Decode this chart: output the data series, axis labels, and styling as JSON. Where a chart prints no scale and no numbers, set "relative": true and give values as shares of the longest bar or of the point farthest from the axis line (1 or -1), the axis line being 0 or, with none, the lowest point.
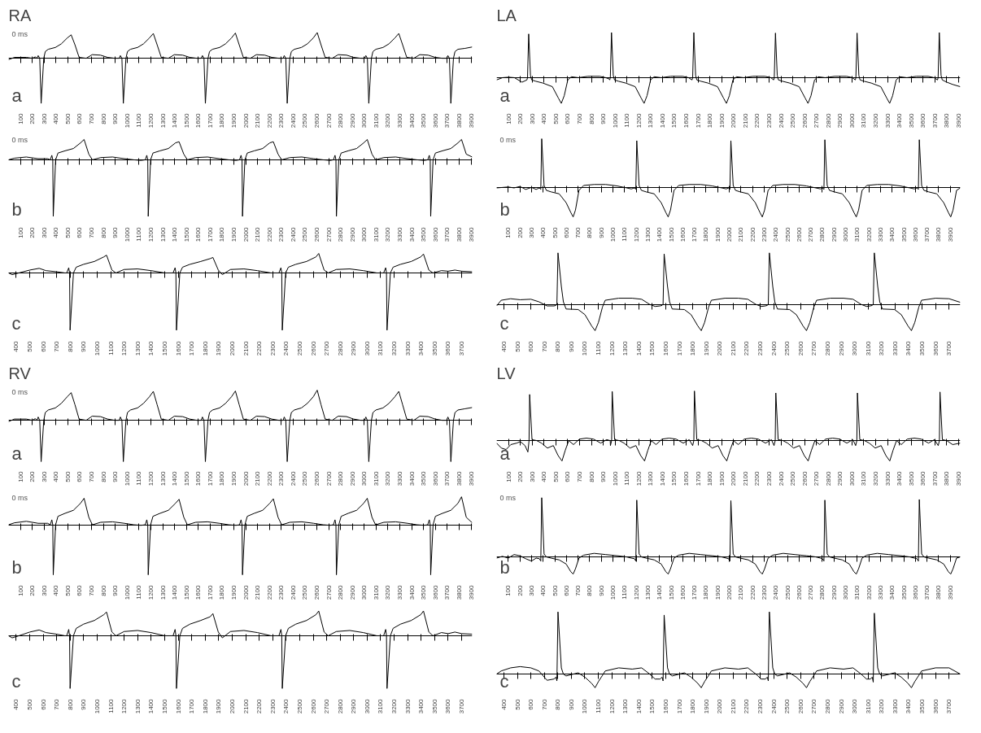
{
  "chart_data": [
    {
      "type": "line",
      "title": "RA",
      "annotations": [
        "0 ms",
        "a"
      ],
      "relative": true,
      "color": "#000000",
      "xlim": [
        0,
        3910
      ],
      "xticks": [
        100,
        200,
        300,
        400,
        500,
        600,
        700,
        800,
        900,
        1000,
        1100,
        1200,
        1300,
        1400,
        1500,
        1600,
        1700,
        1800,
        1900,
        2000,
        2100,
        2200,
        2300,
        2400,
        2500,
        2600,
        2700,
        2800,
        2900,
        3000,
        3100,
        3200,
        3300,
        3400,
        3500,
        3600,
        3700,
        3800,
        3900
      ],
      "x": [
        0,
        50,
        150,
        200,
        225,
        240,
        250,
        263,
        275,
        297,
        310,
        335,
        395,
        445,
        495,
        528,
        560,
        595,
        655,
        705,
        775,
        835,
        895,
        933,
        943,
        956,
        968,
        990,
        1003,
        1028,
        1088,
        1138,
        1188,
        1221,
        1253,
        1288,
        1348,
        1398,
        1468,
        1528,
        1588,
        1625,
        1635,
        1648,
        1660,
        1682,
        1695,
        1720,
        1780,
        1830,
        1880,
        1913,
        1945,
        1980,
        2040,
        2090,
        2160,
        2220,
        2280,
        2315,
        2325,
        2338,
        2350,
        2372,
        2385,
        2410,
        2470,
        2520,
        2570,
        2603,
        2635,
        2670,
        2730,
        2780,
        2850,
        2910,
        2970,
        3003,
        3013,
        3026,
        3038,
        3060,
        3073,
        3098,
        3158,
        3208,
        3258,
        3291,
        3323,
        3358,
        3418,
        3468,
        3538,
        3598,
        3658,
        3695,
        3705,
        3718,
        3730,
        3752,
        3765,
        3790,
        3850,
        3910
      ],
      "values": [
        -0.03,
        0.02,
        0.02,
        0,
        0.03,
        0,
        0.06,
        0,
        -1,
        0,
        0.15,
        0.2,
        0.24,
        0.32,
        0.45,
        0.52,
        0.3,
        0.02,
        0,
        0.08,
        0.07,
        0.02,
        0,
        0,
        0.06,
        0,
        -1,
        0,
        0.15,
        0.2,
        0.24,
        0.32,
        0.45,
        0.55,
        0.3,
        0.02,
        0,
        0.08,
        0.07,
        0.02,
        0,
        0,
        0.06,
        0,
        -1,
        0,
        0.15,
        0.2,
        0.24,
        0.32,
        0.45,
        0.56,
        0.3,
        0.02,
        0,
        0.08,
        0.07,
        0.02,
        0,
        0,
        0.06,
        0,
        -1,
        0,
        0.15,
        0.2,
        0.24,
        0.32,
        0.45,
        0.57,
        0.3,
        0.02,
        0,
        0.08,
        0.07,
        0.02,
        0,
        0,
        0.06,
        0,
        -1,
        0,
        0.15,
        0.2,
        0.24,
        0.32,
        0.45,
        0.55,
        0.3,
        0.02,
        0,
        0.08,
        0.07,
        0.02,
        0,
        0,
        0.06,
        0,
        -1,
        0,
        0.15,
        0.2,
        0.22,
        0.25
      ]
    },
    {
      "type": "line",
      "annotations": [
        "0 ms",
        "b"
      ],
      "relative": true,
      "color": "#000000",
      "xlim": [
        0,
        3910
      ],
      "xticks": [
        100,
        200,
        300,
        400,
        500,
        600,
        700,
        800,
        900,
        1000,
        1100,
        1200,
        1300,
        1400,
        1500,
        1600,
        1700,
        1800,
        1900,
        2000,
        2100,
        2200,
        2300,
        2400,
        2500,
        2600,
        2700,
        2800,
        2900,
        3000,
        3100,
        3200,
        3300,
        3400,
        3500,
        3600,
        3700,
        3800,
        3900
      ],
      "x": [
        0,
        50,
        150,
        250,
        330,
        352,
        365,
        373,
        377,
        397,
        417,
        477,
        547,
        607,
        637,
        677,
        707,
        777,
        877,
        977,
        1057,
        1117,
        1153,
        1166,
        1174,
        1178,
        1198,
        1218,
        1278,
        1348,
        1408,
        1438,
        1478,
        1508,
        1578,
        1678,
        1778,
        1858,
        1918,
        1948,
        1961,
        1969,
        1973,
        1993,
        2013,
        2073,
        2143,
        2203,
        2233,
        2273,
        2303,
        2373,
        2473,
        2573,
        2653,
        2713,
        2740,
        2753,
        2761,
        2765,
        2785,
        2805,
        2865,
        2935,
        2995,
        3025,
        3065,
        3095,
        3165,
        3265,
        3365,
        3445,
        3505,
        3535,
        3548,
        3556,
        3560,
        3580,
        3600,
        3660,
        3730,
        3790,
        3820,
        3860,
        3910
      ],
      "values": [
        0,
        0.03,
        0.05,
        0.02,
        0.02,
        0,
        0.08,
        0,
        -1,
        0,
        0.12,
        0.16,
        0.2,
        0.3,
        0.36,
        0.1,
        0,
        0.04,
        0.05,
        0.02,
        0,
        -0.01,
        0,
        0.08,
        0,
        -1,
        0,
        0.12,
        0.16,
        0.2,
        0.3,
        0.32,
        0.1,
        0,
        0.04,
        0.05,
        0.02,
        0,
        -0.01,
        0,
        0.08,
        0,
        -1,
        0,
        0.12,
        0.16,
        0.2,
        0.3,
        0.32,
        0.1,
        0,
        0.04,
        0.05,
        0.02,
        0,
        -0.01,
        0,
        0.08,
        0,
        -1,
        0,
        0.12,
        0.16,
        0.2,
        0.3,
        0.36,
        0.1,
        0,
        0.04,
        0.05,
        0.02,
        0,
        -0.01,
        0,
        0.08,
        0,
        -1,
        0,
        0.12,
        0.16,
        0.2,
        0.3,
        0.36,
        0.1,
        0.05
      ]
    },
    {
      "type": "line",
      "annotations": [
        "c"
      ],
      "relative": true,
      "color": "#000000",
      "xlim": [
        343,
        3778
      ],
      "xticks": [
        400,
        500,
        600,
        700,
        800,
        900,
        1000,
        1100,
        1200,
        1300,
        1400,
        1500,
        1600,
        1700,
        1800,
        1900,
        2000,
        2100,
        2200,
        2300,
        2400,
        2500,
        2600,
        2700,
        2800,
        2900,
        3000,
        3100,
        3200,
        3300,
        3400,
        3500,
        3600,
        3700
      ],
      "x": [
        343,
        370,
        420,
        500,
        570,
        620,
        700,
        760,
        774,
        789,
        795,
        799,
        824,
        844,
        899,
        979,
        1049,
        1069,
        1109,
        1139,
        1199,
        1299,
        1399,
        1499,
        1562,
        1577,
        1583,
        1587,
        1612,
        1632,
        1687,
        1767,
        1837,
        1857,
        1897,
        1927,
        1987,
        2087,
        2187,
        2287,
        2346,
        2361,
        2367,
        2371,
        2396,
        2416,
        2471,
        2551,
        2621,
        2641,
        2681,
        2711,
        2771,
        2871,
        2971,
        3071,
        3122,
        3137,
        3143,
        3147,
        3172,
        3192,
        3247,
        3327,
        3397,
        3417,
        3457,
        3487,
        3550,
        3600,
        3650,
        3700,
        3778
      ],
      "values": [
        0,
        -0.03,
        0,
        0.05,
        0.08,
        0.04,
        0.02,
        0,
        0,
        0.09,
        0,
        -1,
        0,
        0.1,
        0.15,
        0.2,
        0.28,
        0.31,
        0.05,
        0,
        0.06,
        0.07,
        0.04,
        0,
        0,
        0.09,
        0,
        -1,
        0,
        0.1,
        0.15,
        0.2,
        0.25,
        0.27,
        0.05,
        -0.03,
        0.06,
        0.07,
        0.04,
        0,
        0,
        0.09,
        0,
        -1,
        0,
        0.1,
        0.15,
        0.2,
        0.28,
        0.34,
        0.05,
        0,
        0.06,
        0.07,
        0.04,
        0,
        0,
        0.09,
        0,
        -1,
        0,
        0.1,
        0.15,
        0.2,
        0.28,
        0.33,
        0.05,
        0,
        0.04,
        0.03,
        0.05,
        0.03,
        0.02
      ]
    },
    {
      "type": "line",
      "title": "LA",
      "annotations": [
        "a"
      ],
      "relative": true,
      "color": "#000000",
      "xlim": [
        0,
        3914
      ],
      "xticks": [
        100,
        200,
        300,
        400,
        500,
        600,
        700,
        800,
        900,
        1000,
        1100,
        1200,
        1300,
        1400,
        1500,
        1600,
        1700,
        1800,
        1900,
        2000,
        2100,
        2200,
        2300,
        2400,
        2500,
        2600,
        2700,
        2800,
        2900,
        3000,
        3100,
        3200,
        3300,
        3400,
        3500,
        3600,
        3700,
        3800,
        3900
      ],
      "x": [
        0,
        50,
        100,
        150,
        215,
        256,
        261,
        271,
        286,
        296,
        331,
        391,
        471,
        521,
        546,
        571,
        601,
        631,
        691,
        771,
        871,
        921,
        951,
        955,
        960,
        970,
        985,
        995,
        1030,
        1090,
        1170,
        1220,
        1245,
        1270,
        1300,
        1330,
        1390,
        1470,
        1570,
        1620,
        1650,
        1655,
        1665,
        1680,
        1690,
        1725,
        1785,
        1865,
        1915,
        1940,
        1965,
        1995,
        2025,
        2085,
        2165,
        2265,
        2315,
        2339,
        2344,
        2354,
        2369,
        2379,
        2414,
        2474,
        2554,
        2604,
        2629,
        2654,
        2684,
        2714,
        2774,
        2854,
        2954,
        3004,
        3028,
        3033,
        3043,
        3058,
        3068,
        3103,
        3163,
        3243,
        3293,
        3318,
        3343,
        3373,
        3403,
        3463,
        3543,
        3643,
        3693,
        3722,
        3727,
        3737,
        3752,
        3762,
        3800,
        3850,
        3914
      ],
      "values": [
        -0.05,
        0,
        0.01,
        0,
        -0.1,
        -0.05,
        0,
        0.97,
        0.05,
        -0.05,
        -0.08,
        -0.12,
        -0.2,
        -0.45,
        -0.57,
        -0.4,
        -0.05,
        0.02,
        0,
        0.03,
        0.03,
        0,
        -0.03,
        -0.05,
        0,
        1,
        0.05,
        -0.05,
        -0.08,
        -0.12,
        -0.2,
        -0.45,
        -0.57,
        -0.4,
        -0.05,
        0.02,
        0,
        0.03,
        0.03,
        0,
        -0.05,
        0,
        1,
        0.05,
        -0.05,
        -0.08,
        -0.12,
        -0.2,
        -0.45,
        -0.57,
        -0.4,
        -0.05,
        0.02,
        0,
        0.03,
        0.03,
        0,
        -0.05,
        0,
        0.99,
        0.05,
        -0.05,
        -0.08,
        -0.12,
        -0.2,
        -0.45,
        -0.57,
        -0.4,
        -0.05,
        0.02,
        0,
        0.03,
        0.03,
        0,
        -0.05,
        0,
        0.99,
        0.05,
        -0.05,
        -0.08,
        -0.12,
        -0.2,
        -0.45,
        -0.57,
        -0.4,
        -0.05,
        0.02,
        0,
        0.03,
        0.03,
        0,
        -0.05,
        0,
        1,
        0.05,
        -0.05,
        -0.1,
        -0.15,
        -0.2
      ]
    },
    {
      "type": "line",
      "annotations": [
        "0 ms",
        "b"
      ],
      "relative": true,
      "color": "#000000",
      "xlim": [
        0,
        3986
      ],
      "xticks": [
        100,
        200,
        300,
        400,
        500,
        600,
        700,
        800,
        900,
        1000,
        1100,
        1200,
        1300,
        1400,
        1500,
        1600,
        1700,
        1800,
        1900,
        2000,
        2100,
        2200,
        2300,
        2400,
        2500,
        2600,
        2700,
        2800,
        2900,
        3000,
        3100,
        3200,
        3300,
        3400,
        3500,
        3600,
        3700,
        3800,
        3900
      ],
      "x": [
        0,
        50,
        100,
        150,
        200,
        250,
        300,
        340,
        368,
        380,
        388,
        408,
        428,
        468,
        538,
        598,
        638,
        658,
        678,
        708,
        748,
        838,
        938,
        1038,
        1118,
        1158,
        1185,
        1197,
        1205,
        1225,
        1245,
        1285,
        1355,
        1415,
        1455,
        1475,
        1495,
        1525,
        1565,
        1655,
        1755,
        1855,
        1935,
        1975,
        1994,
        2006,
        2014,
        2034,
        2054,
        2094,
        2164,
        2224,
        2264,
        2284,
        2304,
        2334,
        2374,
        2464,
        2564,
        2664,
        2744,
        2784,
        2802,
        2814,
        2822,
        2842,
        2862,
        2902,
        2972,
        3032,
        3072,
        3092,
        3112,
        3142,
        3182,
        3272,
        3372,
        3472,
        3552,
        3592,
        3614,
        3626,
        3634,
        3654,
        3674,
        3714,
        3784,
        3844,
        3884,
        3904,
        3924,
        3954,
        3986
      ],
      "values": [
        0,
        0.01,
        0.02,
        0,
        0.03,
        -0.03,
        0.01,
        -0.03,
        0,
        -0.03,
        1,
        0.05,
        -0.05,
        -0.08,
        -0.12,
        -0.3,
        -0.5,
        -0.59,
        -0.45,
        -0.05,
        0.05,
        0.07,
        0.07,
        0.04,
        0,
        -0.02,
        0,
        -0.03,
        0.96,
        0.05,
        -0.05,
        -0.08,
        -0.12,
        -0.3,
        -0.5,
        -0.59,
        -0.45,
        -0.05,
        0.05,
        0.07,
        0.07,
        0.04,
        0,
        -0.02,
        0,
        -0.03,
        0.96,
        0.05,
        -0.05,
        -0.08,
        -0.12,
        -0.3,
        -0.5,
        -0.59,
        -0.45,
        -0.05,
        0.05,
        0.07,
        0.07,
        0.04,
        0,
        -0.02,
        0,
        -0.03,
        0.98,
        0.05,
        -0.05,
        -0.08,
        -0.12,
        -0.3,
        -0.5,
        -0.59,
        -0.45,
        -0.05,
        0.05,
        0.07,
        0.07,
        0.04,
        0,
        -0.02,
        0,
        -0.03,
        0.98,
        0.05,
        -0.05,
        -0.08,
        -0.12,
        -0.3,
        -0.5,
        -0.59,
        -0.45,
        -0.05,
        0
      ]
    },
    {
      "type": "line",
      "annotations": [
        "c"
      ],
      "relative": true,
      "color": "#000000",
      "xlim": [
        346,
        3783
      ],
      "xticks": [
        400,
        500,
        600,
        700,
        800,
        900,
        1000,
        1100,
        1200,
        1300,
        1400,
        1500,
        1600,
        1700,
        1800,
        1900,
        2000,
        2100,
        2200,
        2300,
        2400,
        2500,
        2600,
        2700,
        2800,
        2900,
        3000,
        3100,
        3200,
        3300,
        3400,
        3500,
        3600,
        3700
      ],
      "x": [
        346,
        380,
        450,
        520,
        600,
        660,
        720,
        771,
        786,
        793,
        801,
        826,
        841,
        861,
        951,
        1001,
        1051,
        1076,
        1101,
        1131,
        1151,
        1251,
        1351,
        1421,
        1481,
        1521,
        1558,
        1573,
        1580,
        1588,
        1613,
        1628,
        1648,
        1738,
        1788,
        1838,
        1863,
        1888,
        1918,
        1938,
        2038,
        2138,
        2208,
        2268,
        2308,
        2338,
        2353,
        2360,
        2368,
        2393,
        2408,
        2428,
        2518,
        2568,
        2618,
        2643,
        2668,
        2698,
        2718,
        2818,
        2918,
        2988,
        3048,
        3088,
        3116,
        3131,
        3138,
        3146,
        3171,
        3186,
        3206,
        3296,
        3346,
        3396,
        3421,
        3446,
        3476,
        3496,
        3600,
        3700,
        3783
      ],
      "values": [
        -0.03,
        0.08,
        0.11,
        0.09,
        0.1,
        0.05,
        -0.03,
        -0.03,
        -0.02,
        0,
        1,
        0.35,
        0.05,
        -0.09,
        -0.1,
        -0.2,
        -0.42,
        -0.51,
        -0.35,
        -0.05,
        0.08,
        0.12,
        0.12,
        0.1,
        0,
        -0.04,
        -0.03,
        -0.02,
        0,
        0.98,
        0.35,
        0.05,
        -0.09,
        -0.1,
        -0.2,
        -0.42,
        -0.51,
        -0.35,
        -0.05,
        0.08,
        0.12,
        0.12,
        0.1,
        0,
        -0.04,
        -0.03,
        -0.02,
        0,
        1,
        0.35,
        0.05,
        -0.09,
        -0.1,
        -0.2,
        -0.42,
        -0.51,
        -0.35,
        -0.05,
        0.08,
        0.12,
        0.12,
        0.1,
        0,
        -0.04,
        -0.03,
        -0.02,
        0,
        1,
        0.35,
        0.05,
        -0.09,
        -0.1,
        -0.2,
        -0.42,
        -0.51,
        -0.35,
        -0.05,
        0.08,
        0.12,
        0.11,
        0.04
      ]
    },
    {
      "type": "line",
      "title": "RV",
      "annotations": [
        "0 ms",
        "a"
      ],
      "relative": true,
      "color": "#000000",
      "xlim": [
        0,
        3910
      ],
      "xticks": [
        100,
        200,
        300,
        400,
        500,
        600,
        700,
        800,
        900,
        1000,
        1100,
        1200,
        1300,
        1400,
        1500,
        1600,
        1700,
        1800,
        1900,
        2000,
        2100,
        2200,
        2300,
        2400,
        2500,
        2600,
        2700,
        2800,
        2900,
        3000,
        3100,
        3200,
        3300,
        3400,
        3500,
        3600,
        3700,
        3800,
        3900
      ],
      "x": [
        0,
        50,
        150,
        200,
        225,
        240,
        250,
        263,
        275,
        297,
        310,
        335,
        395,
        445,
        495,
        528,
        560,
        595,
        655,
        705,
        775,
        835,
        895,
        933,
        943,
        956,
        968,
        990,
        1003,
        1028,
        1088,
        1138,
        1188,
        1221,
        1253,
        1288,
        1348,
        1398,
        1468,
        1528,
        1588,
        1625,
        1635,
        1648,
        1660,
        1682,
        1695,
        1720,
        1780,
        1830,
        1880,
        1913,
        1945,
        1980,
        2040,
        2090,
        2160,
        2220,
        2280,
        2315,
        2325,
        2338,
        2350,
        2372,
        2385,
        2410,
        2470,
        2520,
        2570,
        2603,
        2635,
        2670,
        2730,
        2780,
        2850,
        2910,
        2970,
        3003,
        3013,
        3026,
        3038,
        3060,
        3073,
        3098,
        3158,
        3208,
        3258,
        3291,
        3323,
        3358,
        3418,
        3468,
        3538,
        3598,
        3658,
        3695,
        3705,
        3718,
        3730,
        3752,
        3765,
        3790,
        3850,
        3910
      ],
      "values": [
        -0.03,
        0.03,
        0.03,
        0,
        0.04,
        0,
        0.08,
        0,
        -1,
        0,
        0.19,
        0.25,
        0.3,
        0.41,
        0.57,
        0.67,
        0.38,
        0.03,
        0,
        0.1,
        0.09,
        0.03,
        0,
        0,
        0.08,
        0,
        -1,
        0,
        0.19,
        0.25,
        0.3,
        0.41,
        0.57,
        0.7,
        0.38,
        0.03,
        0,
        0.1,
        0.09,
        0.03,
        0,
        0,
        0.08,
        0,
        -1,
        0,
        0.19,
        0.25,
        0.3,
        0.41,
        0.57,
        0.71,
        0.38,
        0.03,
        0,
        0.1,
        0.09,
        0.03,
        0,
        0,
        0.08,
        0,
        -1,
        0,
        0.19,
        0.25,
        0.3,
        0.41,
        0.57,
        0.73,
        0.38,
        0.03,
        0,
        0.1,
        0.09,
        0.03,
        0,
        0,
        0.08,
        0,
        -1,
        0,
        0.19,
        0.25,
        0.3,
        0.41,
        0.57,
        0.7,
        0.38,
        0.03,
        0,
        0.1,
        0.09,
        0.03,
        0,
        0,
        0.08,
        0,
        -1,
        0,
        0.19,
        0.25,
        0.28,
        0.31
      ]
    },
    {
      "type": "line",
      "annotations": [
        "0 ms",
        "b"
      ],
      "relative": true,
      "color": "#000000",
      "xlim": [
        0,
        3910
      ],
      "xticks": [
        100,
        200,
        300,
        400,
        500,
        600,
        700,
        800,
        900,
        1000,
        1100,
        1200,
        1300,
        1400,
        1500,
        1600,
        1700,
        1800,
        1900,
        2000,
        2100,
        2200,
        2300,
        2400,
        2500,
        2600,
        2700,
        2800,
        2900,
        3000,
        3100,
        3200,
        3300,
        3400,
        3500,
        3600,
        3700,
        3800,
        3900
      ],
      "x": [
        0,
        50,
        150,
        250,
        330,
        352,
        365,
        373,
        377,
        397,
        417,
        477,
        547,
        607,
        637,
        677,
        707,
        777,
        877,
        977,
        1057,
        1117,
        1153,
        1166,
        1174,
        1178,
        1198,
        1218,
        1278,
        1348,
        1408,
        1438,
        1478,
        1508,
        1578,
        1678,
        1778,
        1858,
        1918,
        1948,
        1961,
        1969,
        1973,
        1993,
        2013,
        2073,
        2143,
        2203,
        2233,
        2273,
        2303,
        2373,
        2473,
        2573,
        2653,
        2713,
        2740,
        2753,
        2761,
        2765,
        2785,
        2805,
        2865,
        2935,
        2995,
        3025,
        3065,
        3095,
        3165,
        3265,
        3365,
        3445,
        3505,
        3535,
        3548,
        3556,
        3560,
        3580,
        3600,
        3660,
        3730,
        3790,
        3820,
        3860,
        3910
      ],
      "values": [
        0,
        0.04,
        0.07,
        0.03,
        0.03,
        0,
        0.1,
        0,
        -1,
        0,
        0.17,
        0.23,
        0.29,
        0.43,
        0.53,
        0.15,
        0,
        0.05,
        0.06,
        0.03,
        0,
        -0.01,
        0,
        0.1,
        0,
        -1,
        0,
        0.17,
        0.23,
        0.29,
        0.43,
        0.51,
        0.15,
        0,
        0.05,
        0.06,
        0.03,
        0,
        -0.01,
        0,
        0.1,
        0,
        -1,
        0,
        0.17,
        0.23,
        0.29,
        0.43,
        0.52,
        0.15,
        0,
        0.05,
        0.06,
        0.03,
        0,
        -0.01,
        0,
        0.1,
        0,
        -1,
        0,
        0.17,
        0.23,
        0.29,
        0.43,
        0.53,
        0.15,
        0,
        0.05,
        0.06,
        0.03,
        0,
        -0.01,
        0,
        0.1,
        0,
        -1,
        0,
        0.17,
        0.23,
        0.29,
        0.43,
        0.56,
        0.15,
        0.04
      ]
    },
    {
      "type": "line",
      "annotations": [
        "c"
      ],
      "relative": true,
      "color": "#000000",
      "xlim": [
        343,
        3778
      ],
      "xticks": [
        400,
        500,
        600,
        700,
        800,
        900,
        1000,
        1100,
        1200,
        1300,
        1400,
        1500,
        1600,
        1700,
        1800,
        1900,
        2000,
        2100,
        2200,
        2300,
        2400,
        2500,
        2600,
        2700,
        2800,
        2900,
        3000,
        3100,
        3200,
        3300,
        3400,
        3500,
        3600,
        3700
      ],
      "x": [
        343,
        370,
        420,
        500,
        570,
        620,
        700,
        760,
        774,
        789,
        795,
        799,
        824,
        844,
        899,
        979,
        1049,
        1069,
        1109,
        1139,
        1199,
        1299,
        1399,
        1499,
        1562,
        1577,
        1583,
        1587,
        1612,
        1632,
        1687,
        1767,
        1837,
        1857,
        1897,
        1927,
        1987,
        2087,
        2187,
        2287,
        2346,
        2361,
        2367,
        2371,
        2396,
        2416,
        2471,
        2551,
        2621,
        2641,
        2681,
        2711,
        2771,
        2871,
        2971,
        3071,
        3122,
        3137,
        3143,
        3147,
        3172,
        3192,
        3247,
        3327,
        3397,
        3417,
        3457,
        3487,
        3550,
        3600,
        3650,
        3700,
        3778
      ],
      "values": [
        0,
        -0.04,
        0,
        0.07,
        0.11,
        0.06,
        0.03,
        0,
        0,
        0.12,
        0,
        -1,
        0,
        0.14,
        0.22,
        0.29,
        0.4,
        0.45,
        0.07,
        0,
        0.08,
        0.1,
        0.06,
        0,
        0,
        0.12,
        0,
        -1,
        0,
        0.14,
        0.22,
        0.29,
        0.36,
        0.42,
        0.07,
        -0.04,
        0.08,
        0.1,
        0.06,
        0,
        0,
        0.12,
        0,
        -1,
        0,
        0.14,
        0.22,
        0.29,
        0.4,
        0.47,
        0.07,
        0,
        0.08,
        0.1,
        0.06,
        0,
        0,
        0.12,
        0,
        -1,
        0,
        0.14,
        0.22,
        0.29,
        0.4,
        0.47,
        0.07,
        0,
        0.06,
        0.04,
        0.07,
        0.04,
        0.03
      ]
    },
    {
      "type": "line",
      "title": "LV",
      "annotations": [
        "a"
      ],
      "relative": true,
      "color": "#000000",
      "xlim": [
        0,
        3914
      ],
      "xticks": [
        100,
        200,
        300,
        400,
        500,
        600,
        700,
        800,
        900,
        1000,
        1100,
        1200,
        1300,
        1400,
        1500,
        1600,
        1700,
        1800,
        1900,
        2000,
        2100,
        2200,
        2300,
        2400,
        2500,
        2600,
        2700,
        2800,
        2900,
        3000,
        3100,
        3200,
        3300,
        3400,
        3500,
        3600,
        3700,
        3800,
        3900
      ],
      "x": [
        0,
        40,
        80,
        120,
        170,
        200,
        240,
        264,
        274,
        279,
        299,
        339,
        379,
        429,
        479,
        519,
        552,
        579,
        609,
        649,
        699,
        759,
        819,
        879,
        929,
        959,
        961,
        971,
        976,
        996,
        1036,
        1076,
        1126,
        1176,
        1216,
        1249,
        1276,
        1306,
        1346,
        1396,
        1456,
        1516,
        1576,
        1626,
        1655,
        1665,
        1670,
        1690,
        1730,
        1770,
        1820,
        1870,
        1910,
        1943,
        1970,
        2000,
        2040,
        2090,
        2150,
        2210,
        2270,
        2320,
        2342,
        2352,
        2357,
        2377,
        2417,
        2457,
        2507,
        2557,
        2597,
        2630,
        2657,
        2687,
        2727,
        2777,
        2837,
        2897,
        2957,
        3007,
        3031,
        3041,
        3046,
        3066,
        3106,
        3146,
        3196,
        3246,
        3286,
        3319,
        3346,
        3376,
        3416,
        3466,
        3526,
        3586,
        3646,
        3696,
        3728,
        3738,
        3743,
        3763,
        3800,
        3850,
        3914
      ],
      "values": [
        -0.05,
        -0.15,
        -0.18,
        -0.08,
        -0.05,
        -0.02,
        -0.1,
        -0.23,
        0,
        0.93,
        0.02,
        0,
        -0.05,
        -0.15,
        -0.1,
        -0.3,
        -0.41,
        -0.2,
        0,
        -0.08,
        0.03,
        0.05,
        0.03,
        -0.05,
        0.02,
        0,
        -0.1,
        0,
        0.99,
        0.02,
        0,
        -0.05,
        -0.15,
        -0.1,
        -0.3,
        -0.41,
        -0.2,
        0,
        -0.08,
        0.03,
        0.05,
        0.03,
        -0.05,
        0.02,
        -0.1,
        0,
        1,
        0.02,
        0,
        -0.05,
        -0.15,
        -0.1,
        -0.3,
        -0.41,
        -0.2,
        0,
        -0.08,
        0.03,
        0.05,
        0.03,
        -0.05,
        0.02,
        -0.1,
        0,
        0.96,
        0.02,
        0,
        -0.05,
        -0.15,
        -0.1,
        -0.3,
        -0.41,
        -0.2,
        0,
        -0.08,
        0.03,
        0.05,
        0.03,
        -0.05,
        0.02,
        -0.1,
        0,
        0.96,
        0.02,
        0,
        -0.05,
        -0.15,
        -0.1,
        -0.3,
        -0.41,
        -0.2,
        0,
        -0.08,
        0.03,
        0.05,
        0.03,
        -0.05,
        0.02,
        -0.1,
        0,
        0.98,
        0.02,
        0,
        -0.08,
        -0.05
      ]
    },
    {
      "type": "line",
      "annotations": [
        "0 ms",
        "b"
      ],
      "relative": true,
      "color": "#000000",
      "xlim": [
        0,
        3986
      ],
      "xticks": [
        100,
        200,
        300,
        400,
        500,
        600,
        700,
        800,
        900,
        1000,
        1100,
        1200,
        1300,
        1400,
        1500,
        1600,
        1700,
        1800,
        1900,
        2000,
        2100,
        2200,
        2300,
        2400,
        2500,
        2600,
        2700,
        2800,
        2900,
        3000,
        3100,
        3200,
        3300,
        3400,
        3500,
        3600,
        3700,
        3800,
        3900
      ],
      "x": [
        0,
        50,
        100,
        150,
        200,
        250,
        300,
        340,
        368,
        380,
        388,
        408,
        428,
        468,
        538,
        598,
        638,
        658,
        678,
        708,
        748,
        838,
        938,
        1038,
        1118,
        1158,
        1185,
        1197,
        1205,
        1225,
        1245,
        1285,
        1355,
        1415,
        1455,
        1475,
        1495,
        1525,
        1565,
        1655,
        1755,
        1855,
        1935,
        1975,
        1994,
        2006,
        2014,
        2034,
        2054,
        2094,
        2164,
        2224,
        2264,
        2284,
        2304,
        2334,
        2374,
        2464,
        2564,
        2664,
        2744,
        2784,
        2802,
        2814,
        2822,
        2842,
        2862,
        2902,
        2972,
        3032,
        3072,
        3092,
        3112,
        3142,
        3182,
        3272,
        3372,
        3472,
        3552,
        3592,
        3614,
        3626,
        3634,
        3654,
        3674,
        3714,
        3784,
        3844,
        3884,
        3904,
        3924,
        3954,
        3986
      ],
      "values": [
        -0.02,
        0.01,
        -0.02,
        0.04,
        0.02,
        -0.03,
        -0.07,
        -0.02,
        -0.03,
        -0.07,
        1,
        0.05,
        0,
        -0.02,
        -0.05,
        -0.12,
        -0.25,
        -0.29,
        -0.2,
        -0.02,
        0.03,
        0.06,
        0.04,
        0.02,
        0,
        -0.02,
        -0.03,
        -0.07,
        0.96,
        0.05,
        0,
        -0.02,
        -0.05,
        -0.12,
        -0.25,
        -0.29,
        -0.2,
        -0.02,
        0.03,
        0.06,
        0.04,
        0.02,
        0,
        -0.02,
        -0.03,
        -0.07,
        0.95,
        0.05,
        0,
        -0.02,
        -0.05,
        -0.12,
        -0.25,
        -0.29,
        -0.2,
        -0.02,
        0.03,
        0.06,
        0.04,
        0.02,
        0,
        -0.02,
        -0.03,
        -0.07,
        0.96,
        0.05,
        0,
        -0.02,
        -0.05,
        -0.12,
        -0.25,
        -0.29,
        -0.2,
        -0.02,
        0.03,
        0.06,
        0.04,
        0.02,
        0,
        -0.02,
        -0.03,
        -0.07,
        0.97,
        0.05,
        0,
        -0.02,
        -0.05,
        -0.12,
        -0.25,
        -0.29,
        -0.2,
        -0.02,
        0
      ]
    },
    {
      "type": "line",
      "annotations": [
        "c"
      ],
      "relative": true,
      "color": "#000000",
      "xlim": [
        346,
        3783
      ],
      "xticks": [
        400,
        500,
        600,
        700,
        800,
        900,
        1000,
        1100,
        1200,
        1300,
        1400,
        1500,
        1600,
        1700,
        1800,
        1900,
        2000,
        2100,
        2200,
        2300,
        2400,
        2500,
        2600,
        2700,
        2800,
        2900,
        3000,
        3100,
        3200,
        3300,
        3400,
        3500,
        3600,
        3700
      ],
      "x": [
        346,
        380,
        450,
        520,
        600,
        660,
        720,
        771,
        786,
        793,
        801,
        826,
        841,
        861,
        951,
        1001,
        1051,
        1076,
        1101,
        1131,
        1151,
        1251,
        1351,
        1421,
        1481,
        1521,
        1558,
        1573,
        1580,
        1588,
        1613,
        1628,
        1648,
        1738,
        1788,
        1838,
        1863,
        1888,
        1918,
        1938,
        2038,
        2138,
        2208,
        2268,
        2308,
        2338,
        2353,
        2360,
        2368,
        2393,
        2408,
        2428,
        2518,
        2568,
        2618,
        2643,
        2668,
        2698,
        2718,
        2818,
        2918,
        2988,
        3048,
        3088,
        3116,
        3131,
        3138,
        3146,
        3171,
        3186,
        3206,
        3296,
        3346,
        3396,
        3421,
        3446,
        3476,
        3496,
        3600,
        3700,
        3783
      ],
      "values": [
        0,
        0.05,
        0.1,
        0.12,
        0.1,
        0.05,
        -0.1,
        -0.08,
        -0.05,
        -0.11,
        1,
        0.1,
        0,
        -0.03,
        0.02,
        -0.05,
        -0.15,
        -0.22,
        -0.12,
        -0.02,
        0.05,
        0.1,
        0.08,
        0.1,
        0,
        -0.08,
        -0.08,
        -0.05,
        -0.11,
        0.95,
        0.1,
        0,
        -0.03,
        0.02,
        -0.05,
        -0.15,
        -0.22,
        -0.12,
        -0.02,
        0.05,
        0.1,
        0.08,
        0.1,
        0,
        -0.08,
        -0.08,
        -0.05,
        -0.11,
        1,
        0.1,
        0,
        -0.03,
        0.02,
        -0.05,
        -0.15,
        -0.22,
        -0.12,
        -0.02,
        0.05,
        0.1,
        0.08,
        0.1,
        0,
        -0.08,
        -0.08,
        -0.05,
        -0.13,
        0.98,
        0.1,
        0,
        -0.03,
        0.02,
        -0.05,
        -0.15,
        -0.22,
        -0.12,
        -0.02,
        0.05,
        0.1,
        0.1,
        0
      ]
    }
  ]
}
